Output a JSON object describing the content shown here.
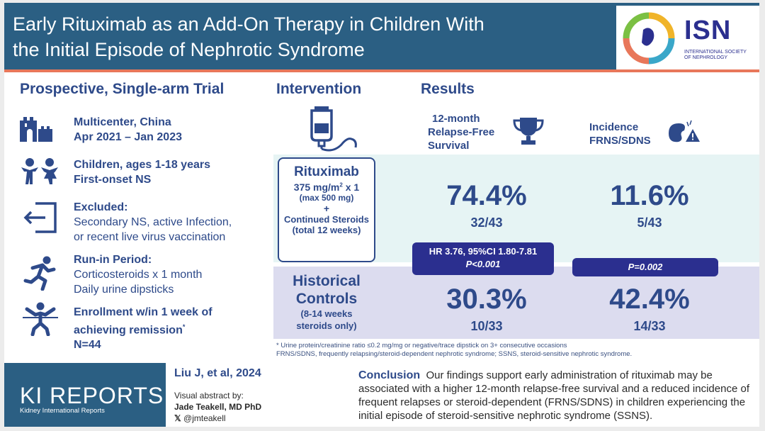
{
  "header": {
    "title_line1": "Early Rituximab as an Add-On Therapy in Children With",
    "title_line2": "the Initial Episode of Nephrotic Syndrome",
    "logo_text": "ISN",
    "logo_sub_line1": "INTERNATIONAL SOCIETY",
    "logo_sub_line2": "OF NEPHROLOGY"
  },
  "design": {
    "heading": "Prospective, Single-arm Trial",
    "items": [
      {
        "bold1": "Multicenter, China",
        "bold2": "Apr 2021 – Jan 2023"
      },
      {
        "bold1": "Children, ages 1-18 years",
        "bold2": "First-onset NS"
      },
      {
        "bold1": "Excluded:",
        "norm1": "Secondary NS, active Infection,",
        "norm2": "or recent live virus vaccination"
      },
      {
        "bold1": "Run-in Period:",
        "norm1": "Corticosteroids x 1 month",
        "norm2": "Daily urine dipsticks"
      },
      {
        "bold1": "Enrollment w/in 1 week of",
        "bold2": "achieving remission",
        "bold2_sup": "*",
        "bold3": "N=44"
      }
    ]
  },
  "intervention": {
    "heading": "Intervention",
    "box_title": "Rituximab",
    "dose_main": "375 mg/m",
    "dose_sup": "2",
    "dose_rest": " x 1",
    "dose_max": "(max 500 mg)",
    "plus": "+",
    "steroids": "Continued Steroids",
    "steroids_sub": "(total 12 weeks)",
    "historical_l1": "Historical",
    "historical_l2": "Controls",
    "historical_sub1": "(8-14 weeks",
    "historical_sub2": "steroids only)"
  },
  "results": {
    "heading": "Results",
    "col1_label_l1": "12-month",
    "col1_label_l2": "Relapse-Free",
    "col1_label_l3": "Survival",
    "col2_label_l1": "Incidence",
    "col2_label_l2": "FRNS/SDNS",
    "rtx_rfs": "74.4%",
    "rtx_rfs_frac": "32/43",
    "rtx_inc": "11.6%",
    "rtx_inc_frac": "5/43",
    "hc_rfs": "30.3%",
    "hc_rfs_frac": "10/33",
    "hc_inc": "42.4%",
    "hc_inc_frac": "14/33",
    "hr_line1": "HR 3.76, 95%CI 1.80-7.81",
    "hr_line2": "P<0.001",
    "p_inc": "P=0.002"
  },
  "footnotes": {
    "line1": "* Urine protein/creatinine ratio ≤0.2 mg/mg or negative/trace dipstick on 3+ consecutive occasions",
    "line2": "FRNS/SDNS,  frequently relapsing/steroid-dependent nephrotic syndrome; SSNS, steroid-sensitive nephrotic syndrome."
  },
  "footer": {
    "journal": "KI REPORTS",
    "journal_sub": "Kidney International Reports",
    "citation": "Liu J, et al, 2024",
    "va_by": "Visual abstract by:",
    "author": "Jade Teakell, MD PhD",
    "handle": "@jmteakell",
    "conclusion_label": "Conclusion",
    "conclusion_text": "Our findings support early administration of rituximab may be associated with a higher 12-month relapse-free survival and a reduced incidence of frequent relapses or steroid-dependent (FRNS/SDNS) in children experiencing the initial  episode of steroid-sensitive nephrotic syndrome (SSNS)."
  },
  "colors": {
    "header_bg": "#2b5f83",
    "accent": "#e8775a",
    "navy": "#2e4a8a",
    "pill": "#2b2f8f",
    "band_top": "#e6f4f4",
    "band_bottom": "#dcdcef"
  }
}
